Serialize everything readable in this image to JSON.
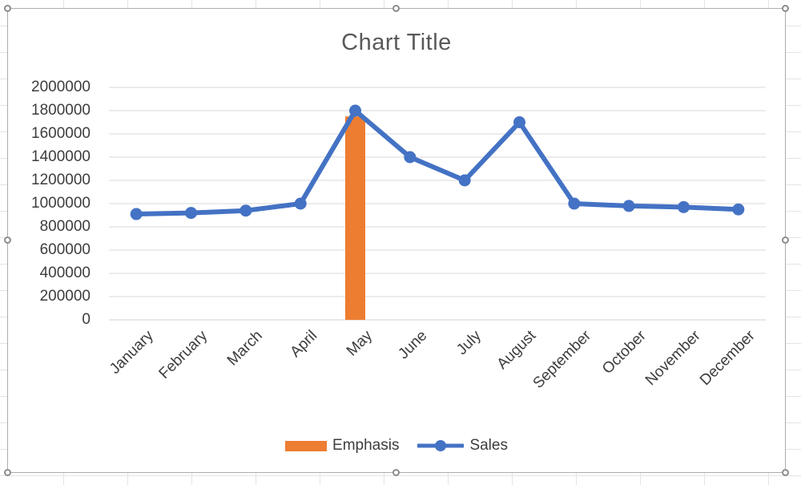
{
  "app_context": {
    "surface": "spreadsheet-worksheet",
    "chart_object_selected": true
  },
  "chart_data": {
    "type": "combo",
    "title": "Chart Title",
    "categories": [
      "January",
      "February",
      "March",
      "April",
      "May",
      "June",
      "July",
      "August",
      "September",
      "October",
      "November",
      "December"
    ],
    "series": [
      {
        "name": "Emphasis",
        "type": "column",
        "color": "#ED7D31",
        "values": [
          null,
          null,
          null,
          null,
          1750000,
          null,
          null,
          null,
          null,
          null,
          null,
          null
        ]
      },
      {
        "name": "Sales",
        "type": "line",
        "marker": "circle",
        "color": "#4472C4",
        "values": [
          910000,
          920000,
          940000,
          1000000,
          1800000,
          1400000,
          1200000,
          1700000,
          1000000,
          980000,
          970000,
          950000
        ]
      }
    ],
    "ylim": [
      0,
      2000000
    ],
    "yticks": [
      0,
      200000,
      400000,
      600000,
      800000,
      1000000,
      1200000,
      1400000,
      1600000,
      1800000,
      2000000
    ],
    "grid": true,
    "legend_position": "bottom"
  },
  "legend": {
    "items": [
      {
        "label": "Emphasis",
        "swatch": "bar"
      },
      {
        "label": "Sales",
        "swatch": "line-marker"
      }
    ]
  },
  "colors": {
    "series_blue": "#4472C4",
    "series_orange": "#ED7D31",
    "gridline": "#D9D9D9",
    "axis_line": "#D2D2D2",
    "axis_text": "#3D3D3D",
    "title_text": "#595959",
    "chart_border": "#ADADAD",
    "sheet_gridline": "#E4E4E4"
  }
}
